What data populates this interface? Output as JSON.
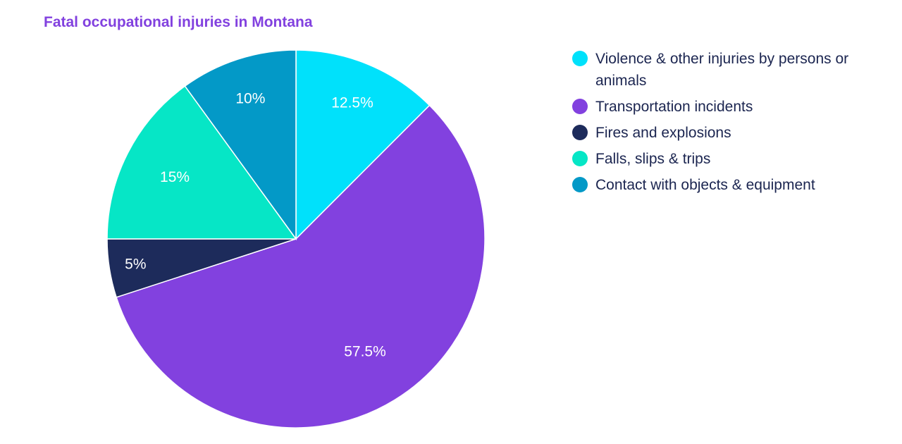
{
  "chart_data": {
    "type": "pie",
    "title": "Fatal occupational injuries in Montana",
    "categories": [
      "Violence & other injuries by persons or animals",
      "Transportation incidents",
      "Fires and explosions",
      "Falls, slips & trips",
      "Contact with objects & equipment"
    ],
    "values": [
      12.5,
      57.5,
      5,
      15,
      10
    ],
    "labels": [
      "12.5%",
      "57.5%",
      "5%",
      "15%",
      "10%"
    ],
    "colors": [
      "#00e1fb",
      "#8241df",
      "#1d2b5b",
      "#06e6c6",
      "#0399c7"
    ],
    "legend_position": "right"
  }
}
